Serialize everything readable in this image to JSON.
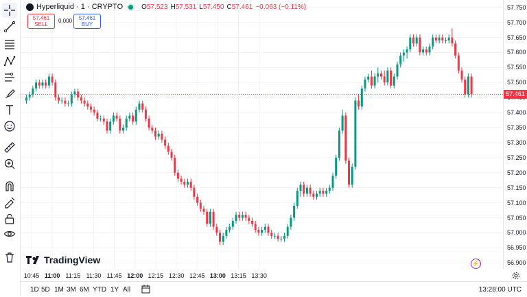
{
  "header": {
    "symbol": "Hyperliquid · 1 · CRYPTO",
    "o_label": "O",
    "o_val": "57.523",
    "h_label": "H",
    "h_val": "57.531",
    "l_label": "L",
    "l_val": "57.450",
    "c_label": "C",
    "c_val": "57.461",
    "change": "−0.063 (−0.11%)"
  },
  "trade": {
    "sell_price": "57.461",
    "sell_label": "SELL",
    "spread": "0.000",
    "buy_price": "57.461",
    "buy_label": "BUY"
  },
  "price_scale": {
    "ticks": [
      "57.750",
      "57.700",
      "57.650",
      "57.600",
      "57.550",
      "57.500",
      "57.450",
      "57.400",
      "57.350",
      "57.300",
      "57.250",
      "57.200",
      "57.150",
      "57.100",
      "57.050",
      "57.000",
      "56.950",
      "56.900"
    ],
    "last_price": "57.461"
  },
  "time_scale": {
    "ticks": [
      "10:45",
      "11:00",
      "11:15",
      "11:30",
      "11:45",
      "12:00",
      "12:15",
      "12:30",
      "12:45",
      "13:00",
      "13:15",
      "13:30"
    ]
  },
  "bottom_bar": {
    "ranges": [
      "1D",
      "5D",
      "1M",
      "3M",
      "6M",
      "YTD",
      "1Y",
      "All"
    ],
    "time": "13:28:00 UTC"
  },
  "watermark": "TradingView",
  "colors": {
    "up": "#089981",
    "down": "#f23645",
    "accent": "#2962ff"
  },
  "chart_data": {
    "type": "candlestick",
    "x_range": [
      "10:42",
      "13:28"
    ],
    "ylim": [
      56.88,
      57.77
    ],
    "candles": [
      [
        57.44,
        57.46,
        57.43,
        57.45
      ],
      [
        57.45,
        57.47,
        57.44,
        57.46
      ],
      [
        57.46,
        57.49,
        57.45,
        57.48
      ],
      [
        57.48,
        57.51,
        57.47,
        57.5
      ],
      [
        57.5,
        57.51,
        57.48,
        57.49
      ],
      [
        57.49,
        57.51,
        57.48,
        57.5
      ],
      [
        57.5,
        57.51,
        57.48,
        57.49
      ],
      [
        57.49,
        57.53,
        57.48,
        57.52
      ],
      [
        57.52,
        57.53,
        57.49,
        57.5
      ],
      [
        57.5,
        57.51,
        57.44,
        57.45
      ],
      [
        57.45,
        57.46,
        57.43,
        57.44
      ],
      [
        57.44,
        57.45,
        57.43,
        57.44
      ],
      [
        57.44,
        57.45,
        57.42,
        57.43
      ],
      [
        57.43,
        57.44,
        57.42,
        57.43
      ],
      [
        57.43,
        57.47,
        57.42,
        57.46
      ],
      [
        57.46,
        57.48,
        57.45,
        57.47
      ],
      [
        57.47,
        57.48,
        57.44,
        57.45
      ],
      [
        57.45,
        57.46,
        57.43,
        57.44
      ],
      [
        57.44,
        57.45,
        57.42,
        57.43
      ],
      [
        57.43,
        57.44,
        57.41,
        57.42
      ],
      [
        57.42,
        57.43,
        57.4,
        57.41
      ],
      [
        57.41,
        57.42,
        57.39,
        57.4
      ],
      [
        57.4,
        57.41,
        57.37,
        57.38
      ],
      [
        57.38,
        57.39,
        57.37,
        57.38
      ],
      [
        57.38,
        57.39,
        57.36,
        57.37
      ],
      [
        57.37,
        57.38,
        57.33,
        57.34
      ],
      [
        57.34,
        57.38,
        57.33,
        57.37
      ],
      [
        57.37,
        57.4,
        57.36,
        57.39
      ],
      [
        57.39,
        57.4,
        57.37,
        57.38
      ],
      [
        57.38,
        57.39,
        57.33,
        57.34
      ],
      [
        57.34,
        57.36,
        57.33,
        57.35
      ],
      [
        57.35,
        57.39,
        57.34,
        57.38
      ],
      [
        57.38,
        57.4,
        57.37,
        57.39
      ],
      [
        57.39,
        57.4,
        57.36,
        57.37
      ],
      [
        57.37,
        57.42,
        57.36,
        57.41
      ],
      [
        57.41,
        57.44,
        57.4,
        57.43
      ],
      [
        57.43,
        57.44,
        57.4,
        57.41
      ],
      [
        57.41,
        57.42,
        57.37,
        57.38
      ],
      [
        57.38,
        57.39,
        57.34,
        57.35
      ],
      [
        57.35,
        57.36,
        57.33,
        57.34
      ],
      [
        57.34,
        57.35,
        57.31,
        57.32
      ],
      [
        57.32,
        57.34,
        57.31,
        57.33
      ],
      [
        57.33,
        57.34,
        57.3,
        57.31
      ],
      [
        57.31,
        57.32,
        57.28,
        57.29
      ],
      [
        57.29,
        57.3,
        57.26,
        57.27
      ],
      [
        57.27,
        57.28,
        57.24,
        57.25
      ],
      [
        57.25,
        57.26,
        57.19,
        57.2
      ],
      [
        57.2,
        57.21,
        57.17,
        57.18
      ],
      [
        57.18,
        57.19,
        57.16,
        57.17
      ],
      [
        57.17,
        57.18,
        57.15,
        57.16
      ],
      [
        57.16,
        57.18,
        57.15,
        57.17
      ],
      [
        57.17,
        57.18,
        57.14,
        57.15
      ],
      [
        57.15,
        57.16,
        57.11,
        57.12
      ],
      [
        57.12,
        57.13,
        57.09,
        57.1
      ],
      [
        57.1,
        57.11,
        57.07,
        57.08
      ],
      [
        57.08,
        57.09,
        57.06,
        57.07
      ],
      [
        57.07,
        57.08,
        57.02,
        57.03
      ],
      [
        57.03,
        57.08,
        57.02,
        57.07
      ],
      [
        57.07,
        57.08,
        57.01,
        57.02
      ],
      [
        57.02,
        57.03,
        56.99,
        57.0
      ],
      [
        57.0,
        57.01,
        56.96,
        56.97
      ],
      [
        56.97,
        57.0,
        56.96,
        56.99
      ],
      [
        56.99,
        57.02,
        56.98,
        57.01
      ],
      [
        57.01,
        57.03,
        57.0,
        57.02
      ],
      [
        57.02,
        57.05,
        57.01,
        57.04
      ],
      [
        57.04,
        57.07,
        57.03,
        57.06
      ],
      [
        57.06,
        57.07,
        57.04,
        57.05
      ],
      [
        57.05,
        57.07,
        57.04,
        57.06
      ],
      [
        57.06,
        57.07,
        57.04,
        57.05
      ],
      [
        57.05,
        57.06,
        57.03,
        57.04
      ],
      [
        57.04,
        57.05,
        57.02,
        57.03
      ],
      [
        57.03,
        57.04,
        57.0,
        57.01
      ],
      [
        57.01,
        57.02,
        56.99,
        57.0
      ],
      [
        57.0,
        57.02,
        56.99,
        57.01
      ],
      [
        57.01,
        57.03,
        57.0,
        57.02
      ],
      [
        57.02,
        57.03,
        56.99,
        57.0
      ],
      [
        57.0,
        57.01,
        56.98,
        56.99
      ],
      [
        56.99,
        57.0,
        56.98,
        56.99
      ],
      [
        56.99,
        57.0,
        56.97,
        56.98
      ],
      [
        56.98,
        56.99,
        56.97,
        56.98
      ],
      [
        56.98,
        57.0,
        56.97,
        56.99
      ],
      [
        56.99,
        57.03,
        56.98,
        57.02
      ],
      [
        57.02,
        57.06,
        57.01,
        57.05
      ],
      [
        57.05,
        57.1,
        57.04,
        57.09
      ],
      [
        57.09,
        57.15,
        57.08,
        57.14
      ],
      [
        57.14,
        57.17,
        57.12,
        57.16
      ],
      [
        57.16,
        57.17,
        57.12,
        57.13
      ],
      [
        57.13,
        57.16,
        57.12,
        57.15
      ],
      [
        57.15,
        57.16,
        57.12,
        57.13
      ],
      [
        57.13,
        57.14,
        57.11,
        57.12
      ],
      [
        57.12,
        57.14,
        57.11,
        57.13
      ],
      [
        57.13,
        57.15,
        57.12,
        57.14
      ],
      [
        57.14,
        57.15,
        57.12,
        57.13
      ],
      [
        57.13,
        57.15,
        57.12,
        57.14
      ],
      [
        57.14,
        57.16,
        57.13,
        57.15
      ],
      [
        57.15,
        57.2,
        57.14,
        57.19
      ],
      [
        57.19,
        57.26,
        57.18,
        57.25
      ],
      [
        57.25,
        57.35,
        57.24,
        57.34
      ],
      [
        57.34,
        57.41,
        57.33,
        57.39
      ],
      [
        57.39,
        57.4,
        57.23,
        57.24
      ],
      [
        57.24,
        57.25,
        57.15,
        57.16
      ],
      [
        57.16,
        57.23,
        57.15,
        57.22
      ],
      [
        57.22,
        57.45,
        57.21,
        57.44
      ],
      [
        57.44,
        57.46,
        57.41,
        57.42
      ],
      [
        57.42,
        57.49,
        57.41,
        57.48
      ],
      [
        57.48,
        57.52,
        57.47,
        57.51
      ],
      [
        57.51,
        57.53,
        57.5,
        57.52
      ],
      [
        57.52,
        57.54,
        57.48,
        57.49
      ],
      [
        57.49,
        57.53,
        57.48,
        57.52
      ],
      [
        57.52,
        57.55,
        57.5,
        57.53
      ],
      [
        57.53,
        57.54,
        57.51,
        57.52
      ],
      [
        57.52,
        57.54,
        57.49,
        57.5
      ],
      [
        57.5,
        57.55,
        57.49,
        57.54
      ],
      [
        57.54,
        57.55,
        57.48,
        57.49
      ],
      [
        57.49,
        57.53,
        57.48,
        57.52
      ],
      [
        57.52,
        57.57,
        57.51,
        57.56
      ],
      [
        57.56,
        57.6,
        57.55,
        57.59
      ],
      [
        57.59,
        57.61,
        57.57,
        57.6
      ],
      [
        57.6,
        57.62,
        57.58,
        57.61
      ],
      [
        57.61,
        57.66,
        57.6,
        57.65
      ],
      [
        57.65,
        57.66,
        57.62,
        57.63
      ],
      [
        57.63,
        57.66,
        57.62,
        57.65
      ],
      [
        57.65,
        57.66,
        57.59,
        57.6
      ],
      [
        57.6,
        57.62,
        57.59,
        57.61
      ],
      [
        57.61,
        57.62,
        57.59,
        57.6
      ],
      [
        57.6,
        57.63,
        57.59,
        57.62
      ],
      [
        57.62,
        57.66,
        57.61,
        57.65
      ],
      [
        57.65,
        57.66,
        57.63,
        57.64
      ],
      [
        57.64,
        57.66,
        57.63,
        57.65
      ],
      [
        57.65,
        57.66,
        57.63,
        57.64
      ],
      [
        57.64,
        57.65,
        57.63,
        57.64
      ],
      [
        57.64,
        57.66,
        57.63,
        57.65
      ],
      [
        57.65,
        57.68,
        57.62,
        57.63
      ],
      [
        57.63,
        57.64,
        57.58,
        57.59
      ],
      [
        57.59,
        57.6,
        57.53,
        57.54
      ],
      [
        57.54,
        57.55,
        57.5,
        57.51
      ],
      [
        57.51,
        57.52,
        57.45,
        57.46
      ],
      [
        57.46,
        57.53,
        57.45,
        57.52
      ],
      [
        57.52,
        57.53,
        57.45,
        57.461
      ]
    ]
  }
}
